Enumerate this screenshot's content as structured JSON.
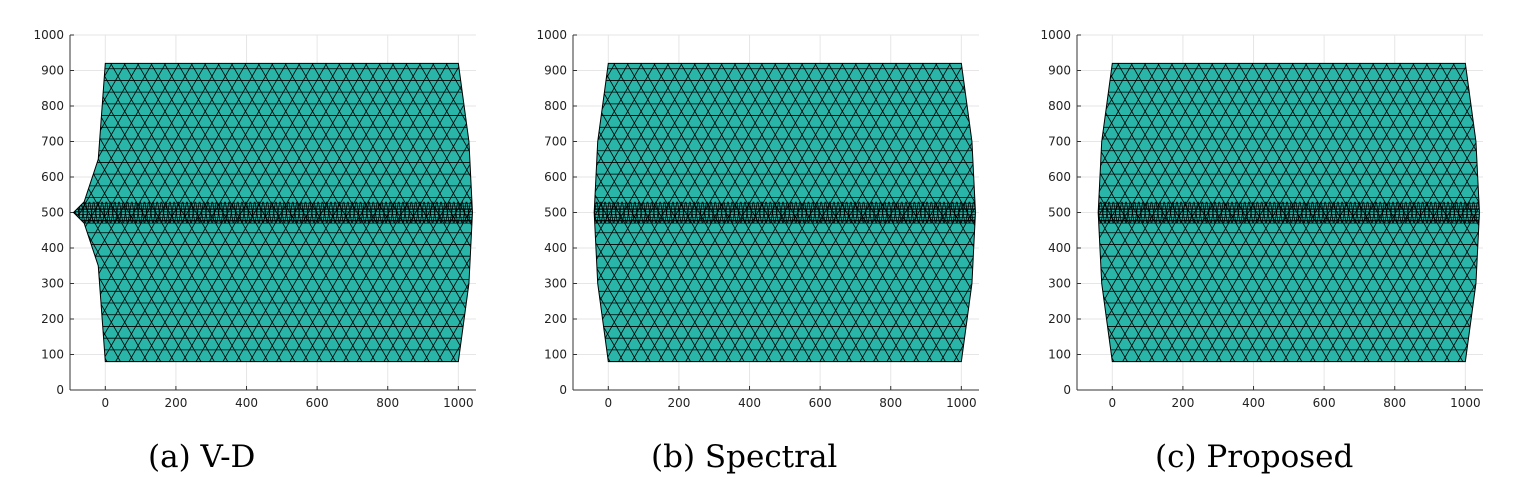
{
  "chart_data": [
    {
      "type": "mesh",
      "caption": "(a) V-D",
      "color": "#29b5a8",
      "grid": true,
      "xlim": [
        -100,
        1050
      ],
      "ylim": [
        0,
        1000
      ],
      "xticks": [
        0,
        200,
        400,
        600,
        800,
        1000
      ],
      "yticks": [
        0,
        100,
        200,
        300,
        400,
        500,
        600,
        700,
        800,
        900,
        1000
      ],
      "boundary": {
        "x": [
          0,
          1000,
          1030,
          1040,
          1030,
          1000,
          0,
          -20,
          -60,
          -90,
          -60,
          -20
        ],
        "y": [
          920,
          920,
          700,
          500,
          300,
          80,
          80,
          350,
          470,
          500,
          530,
          650
        ]
      }
    },
    {
      "type": "mesh",
      "caption": "(b) Spectral",
      "color": "#29b5a8",
      "grid": true,
      "xlim": [
        -100,
        1050
      ],
      "ylim": [
        0,
        1000
      ],
      "xticks": [
        0,
        200,
        400,
        600,
        800,
        1000
      ],
      "yticks": [
        0,
        100,
        200,
        300,
        400,
        500,
        600,
        700,
        800,
        900,
        1000
      ],
      "boundary": {
        "x": [
          0,
          1000,
          1030,
          1040,
          1030,
          1000,
          0,
          -30,
          -40,
          -30
        ],
        "y": [
          920,
          920,
          700,
          500,
          300,
          80,
          80,
          300,
          500,
          700
        ]
      }
    },
    {
      "type": "mesh",
      "caption": "(c) Proposed",
      "color": "#29b5a8",
      "grid": true,
      "xlim": [
        -100,
        1050
      ],
      "ylim": [
        0,
        1000
      ],
      "xticks": [
        0,
        200,
        400,
        600,
        800,
        1000
      ],
      "yticks": [
        0,
        100,
        200,
        300,
        400,
        500,
        600,
        700,
        800,
        900,
        1000
      ],
      "boundary": {
        "x": [
          0,
          1000,
          1030,
          1040,
          1030,
          1000,
          0,
          -30,
          -40,
          -30
        ],
        "y": [
          920,
          920,
          700,
          500,
          300,
          80,
          80,
          300,
          500,
          700
        ]
      }
    }
  ]
}
